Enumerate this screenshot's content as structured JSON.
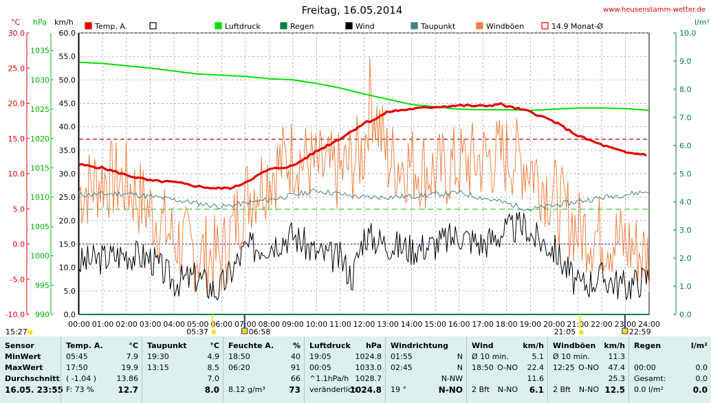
{
  "header": {
    "title": "Freitag, 16.05.2014",
    "website": "www.heusenstamm-wetter.de",
    "website_marker": "e"
  },
  "legend": [
    {
      "label": "Temp. A.",
      "color": "#e00000",
      "kind": "filled"
    },
    {
      "label": "",
      "color": "#000000",
      "kind": "empty"
    },
    {
      "label": "Luftdruck",
      "color": "#00e000",
      "kind": "filled"
    },
    {
      "label": "Regen",
      "color": "#008040",
      "kind": "filled"
    },
    {
      "label": "Wind",
      "color": "#000000",
      "kind": "filled"
    },
    {
      "label": "Taupunkt",
      "color": "#408080",
      "kind": "filled"
    },
    {
      "label": "Windböen",
      "color": "#f08040",
      "kind": "filled"
    },
    {
      "label": "14.9 Monat-Ø",
      "color": "#e00000",
      "kind": "empty"
    }
  ],
  "axis_units": {
    "temp": "°C",
    "pressure": "hPa",
    "wind": "km/h",
    "rain": "l/m²"
  },
  "colors": {
    "temp": "#e00000",
    "pressure": "#00e000",
    "rain": "#008040",
    "wind": "#000000",
    "dewpoint": "#408080",
    "gusts": "#f08040",
    "avg": "#0000c0"
  },
  "chart_data": {
    "type": "line",
    "title": "Freitag, 16.05.2014",
    "x_ticks": [
      "00:00",
      "01:00",
      "02:00",
      "03:00",
      "04:00",
      "05:00",
      "06:00",
      "07:00",
      "08:00",
      "09:00",
      "10:00",
      "11:00",
      "12:00",
      "13:00",
      "14:00",
      "15:00",
      "16:00",
      "17:00",
      "18:00",
      "19:00",
      "20:00",
      "21:00",
      "22:00",
      "23:00",
      "24:00"
    ],
    "temp_ticks": [
      "30.0",
      "25.0",
      "20.0",
      "15.0",
      "10.0",
      "5.0",
      "0.0",
      "-5.0",
      "-10.0"
    ],
    "pressure_ticks": [
      "1035",
      "1030",
      "1025",
      "1020",
      "1015",
      "1010",
      "1005",
      "1000",
      "995",
      "990"
    ],
    "wind_ticks": [
      "60.0",
      "55.0",
      "50.0",
      "45.0",
      "40.0",
      "35.0",
      "30.0",
      "25.0",
      "20.0",
      "15.0",
      "10.0",
      "5.0",
      "0.0"
    ],
    "rain_ticks": [
      "10.0",
      "9.0",
      "8.0",
      "7.0",
      "6.0",
      "5.0",
      "4.0",
      "3.0",
      "2.0",
      "1.0",
      "0.0"
    ],
    "ylim_temp": [
      -10,
      30
    ],
    "ylim_pressure": [
      990,
      1038
    ],
    "ylim_wind": [
      0,
      60
    ],
    "ylim_rain": [
      0,
      10
    ],
    "grid": true,
    "monthly_avg_temp": 14.9,
    "series": [
      {
        "name": "Temp. A.",
        "axis": "temp",
        "x": [
          0,
          1,
          2,
          3,
          4,
          5,
          5.75,
          6.5,
          7,
          8,
          9,
          10,
          11,
          12,
          12.5,
          13,
          14,
          15,
          16,
          17,
          17.75,
          18,
          19,
          20,
          21,
          22,
          23,
          23.92
        ],
        "values": [
          11.3,
          10.8,
          9.8,
          9.0,
          8.8,
          8.2,
          7.9,
          8.0,
          8.8,
          10.6,
          11.1,
          13.2,
          15.0,
          17.2,
          17.8,
          18.8,
          19.2,
          19.5,
          19.7,
          19.6,
          19.9,
          19.6,
          18.8,
          17.4,
          15.4,
          14.1,
          13.0,
          12.7
        ]
      },
      {
        "name": "Luftdruck",
        "axis": "pressure",
        "x": [
          0,
          1,
          2,
          3,
          4,
          5,
          6,
          7,
          8,
          9,
          10,
          11,
          12,
          13,
          14,
          15,
          16,
          17,
          18,
          19,
          19.08,
          20,
          21,
          22,
          23,
          24
        ],
        "values": [
          1033.0,
          1032.8,
          1032.4,
          1032.0,
          1031.5,
          1031.0,
          1030.8,
          1030.6,
          1030.2,
          1030.0,
          1029.4,
          1028.6,
          1027.6,
          1026.7,
          1025.8,
          1025.4,
          1025.0,
          1024.9,
          1024.9,
          1024.8,
          1024.8,
          1025.0,
          1025.2,
          1025.2,
          1025.1,
          1024.8
        ]
      },
      {
        "name": "Taupunkt",
        "axis": "temp",
        "x": [
          0,
          2,
          4,
          6,
          8,
          10,
          12,
          14,
          16,
          18,
          19,
          20,
          22,
          24
        ],
        "values": [
          7.0,
          7.2,
          6.3,
          5.3,
          6.3,
          7.6,
          6.6,
          6.8,
          7.3,
          5.8,
          4.9,
          5.5,
          6.6,
          7.5
        ]
      },
      {
        "name": "Wind",
        "axis": "wind",
        "x": [
          0,
          1,
          2,
          3,
          4,
          5,
          5.75,
          6,
          7,
          8,
          9,
          10,
          11,
          11.5,
          12,
          13,
          14,
          15,
          16,
          17,
          18,
          18.83,
          19,
          20,
          21,
          22,
          23,
          24
        ],
        "values": [
          11,
          12,
          13,
          12,
          7,
          8,
          5,
          6,
          14,
          15,
          17,
          13,
          12,
          8,
          17,
          15,
          14,
          15,
          17,
          15,
          18,
          19,
          17,
          14,
          6,
          8,
          6,
          8
        ]
      },
      {
        "name": "Windböen",
        "axis": "wind",
        "x": [
          0,
          1,
          2,
          3,
          4,
          5,
          6,
          7,
          8,
          9,
          10,
          11,
          12,
          12.25,
          13,
          14,
          15,
          16,
          17,
          18,
          19,
          20,
          21,
          22,
          23,
          24
        ],
        "values": [
          26,
          29,
          28,
          22,
          16,
          13,
          12,
          25,
          30,
          34,
          31,
          30,
          35,
          47,
          33,
          32,
          30,
          32,
          33,
          34,
          32,
          25,
          18,
          17,
          15,
          12
        ]
      },
      {
        "name": "Regen",
        "axis": "rain",
        "x": [
          0,
          24
        ],
        "values": [
          0.0,
          0.0
        ]
      }
    ]
  },
  "time_markers": {
    "start": "15:27",
    "sunrise": "05:37",
    "moon_rise": "06:58",
    "sunset": "21:05",
    "moon_set": "22:59"
  },
  "stats": {
    "sensor": {
      "head": "Sensor",
      "rows": [
        "MinWert",
        "MaxWert",
        "Durchschnitt",
        "16.05. 23:55"
      ]
    },
    "temp": {
      "head": "Temp. A.",
      "unit": "°C",
      "rows": [
        [
          "05:45",
          "7.9"
        ],
        [
          "17:50",
          "19.9"
        ],
        [
          "( -1.04 )",
          "13.86"
        ],
        [
          "F: 73 %",
          "12.7"
        ]
      ]
    },
    "dew": {
      "head": "Taupunkt",
      "unit": "°C",
      "rows": [
        [
          "19:30",
          "4.9"
        ],
        [
          "13:15",
          "8.5"
        ],
        [
          "",
          "7.0"
        ],
        [
          "",
          "8.0"
        ]
      ]
    },
    "humidity": {
      "head": "Feuchte A.",
      "unit": "%",
      "rows": [
        [
          "18:50",
          "40"
        ],
        [
          "06:20",
          "91"
        ],
        [
          "",
          "66"
        ],
        [
          "8.12 g/m³",
          "73"
        ]
      ]
    },
    "pressure": {
      "head": "Luftdruck",
      "unit": "hPa",
      "rows": [
        [
          "19:05",
          "1024.8"
        ],
        [
          "00:05",
          "1033.0"
        ],
        [
          "^1.1hPa/h",
          "1028.7"
        ],
        [
          "veränderlich",
          "1024.8"
        ]
      ]
    },
    "winddir": {
      "head": "Windrichtung",
      "unit": "",
      "rows": [
        [
          "01:55",
          "N"
        ],
        [
          "02:45",
          "N"
        ],
        [
          "",
          "N-NW"
        ],
        [
          "19 °",
          "N-NO"
        ]
      ]
    },
    "wind": {
      "head": "Wind",
      "unit": "km/h",
      "rows": [
        [
          "Ø 10 min.",
          "",
          "5.1"
        ],
        [
          "18:50",
          "O-NO",
          "22.4"
        ],
        [
          "",
          "",
          "11.6"
        ],
        [
          "2 Bft",
          "N-NO",
          "6.1"
        ]
      ]
    },
    "gusts": {
      "head": "Windböen",
      "unit": "km/h",
      "rows": [
        [
          "Ø 10 min.",
          "",
          "11.3"
        ],
        [
          "12:25",
          "O-NO",
          "47.4"
        ],
        [
          "",
          "",
          "25.3"
        ],
        [
          "2 Bft",
          "N-NO",
          "12.5"
        ]
      ]
    },
    "rain": {
      "head": "Regen",
      "unit": "l/m²",
      "rows": [
        [
          "",
          ""
        ],
        [
          "00:00",
          "0.0"
        ],
        [
          "Gesamt:",
          "0.0"
        ],
        [
          "0.0 l/m²",
          "0.0"
        ]
      ]
    }
  }
}
